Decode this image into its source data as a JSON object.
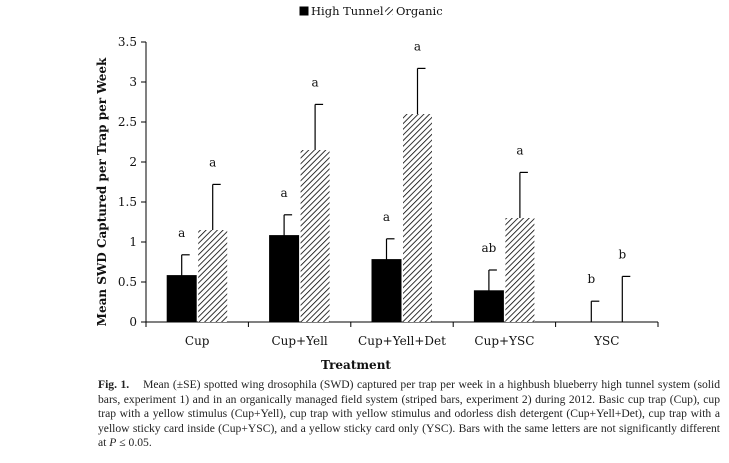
{
  "chart_data": {
    "type": "bar",
    "categories": [
      "Cup",
      "Cup+Yell",
      "Cup+Yell+Det",
      "Cup+YSC",
      "YSC"
    ],
    "series": [
      {
        "name": "High Tunnel",
        "fill": "solid",
        "color": "#000000",
        "values": [
          0.58,
          1.08,
          0.78,
          0.39,
          0
        ],
        "errors": [
          0.26,
          0.26,
          0.26,
          0.26,
          0.26
        ],
        "letters": [
          "a",
          "a",
          "a",
          "ab",
          "b"
        ]
      },
      {
        "name": "Organic",
        "fill": "striped",
        "color": "#000000",
        "values": [
          1.15,
          2.15,
          2.6,
          1.3,
          0
        ],
        "errors": [
          0.57,
          0.57,
          0.57,
          0.57,
          0.57
        ],
        "letters": [
          "a",
          "a",
          "a",
          "a",
          "b"
        ]
      }
    ],
    "yticks": [
      "0",
      "0.5",
      "1",
      "1.5",
      "2",
      "2.5",
      "3",
      "3.5"
    ],
    "ylim": [
      0,
      3.5
    ],
    "xlabel": "Treatment",
    "ylabel": "Mean SWD Captured per Trap per Week",
    "grid": false,
    "legend_position": "top-center"
  },
  "caption": {
    "lead": "Fig. 1.",
    "text_before_p": "Mean (±SE) spotted wing drosophila (SWD) captured per trap per week in a highbush blueberry high tunnel system (solid bars, experiment 1) and in an organically managed field system (striped bars, experiment 2) during 2012. Basic cup trap (Cup), cup trap with a yellow stimulus (Cup+Yell), cup trap with yellow stimulus and odorless dish detergent (Cup+Yell+Det), cup trap with a yellow sticky card inside (Cup+YSC), and a yellow sticky card only (YSC). Bars with the same letters are not significantly different at",
    "p_symbol": "P",
    "text_after_p": "≤ 0.05."
  }
}
